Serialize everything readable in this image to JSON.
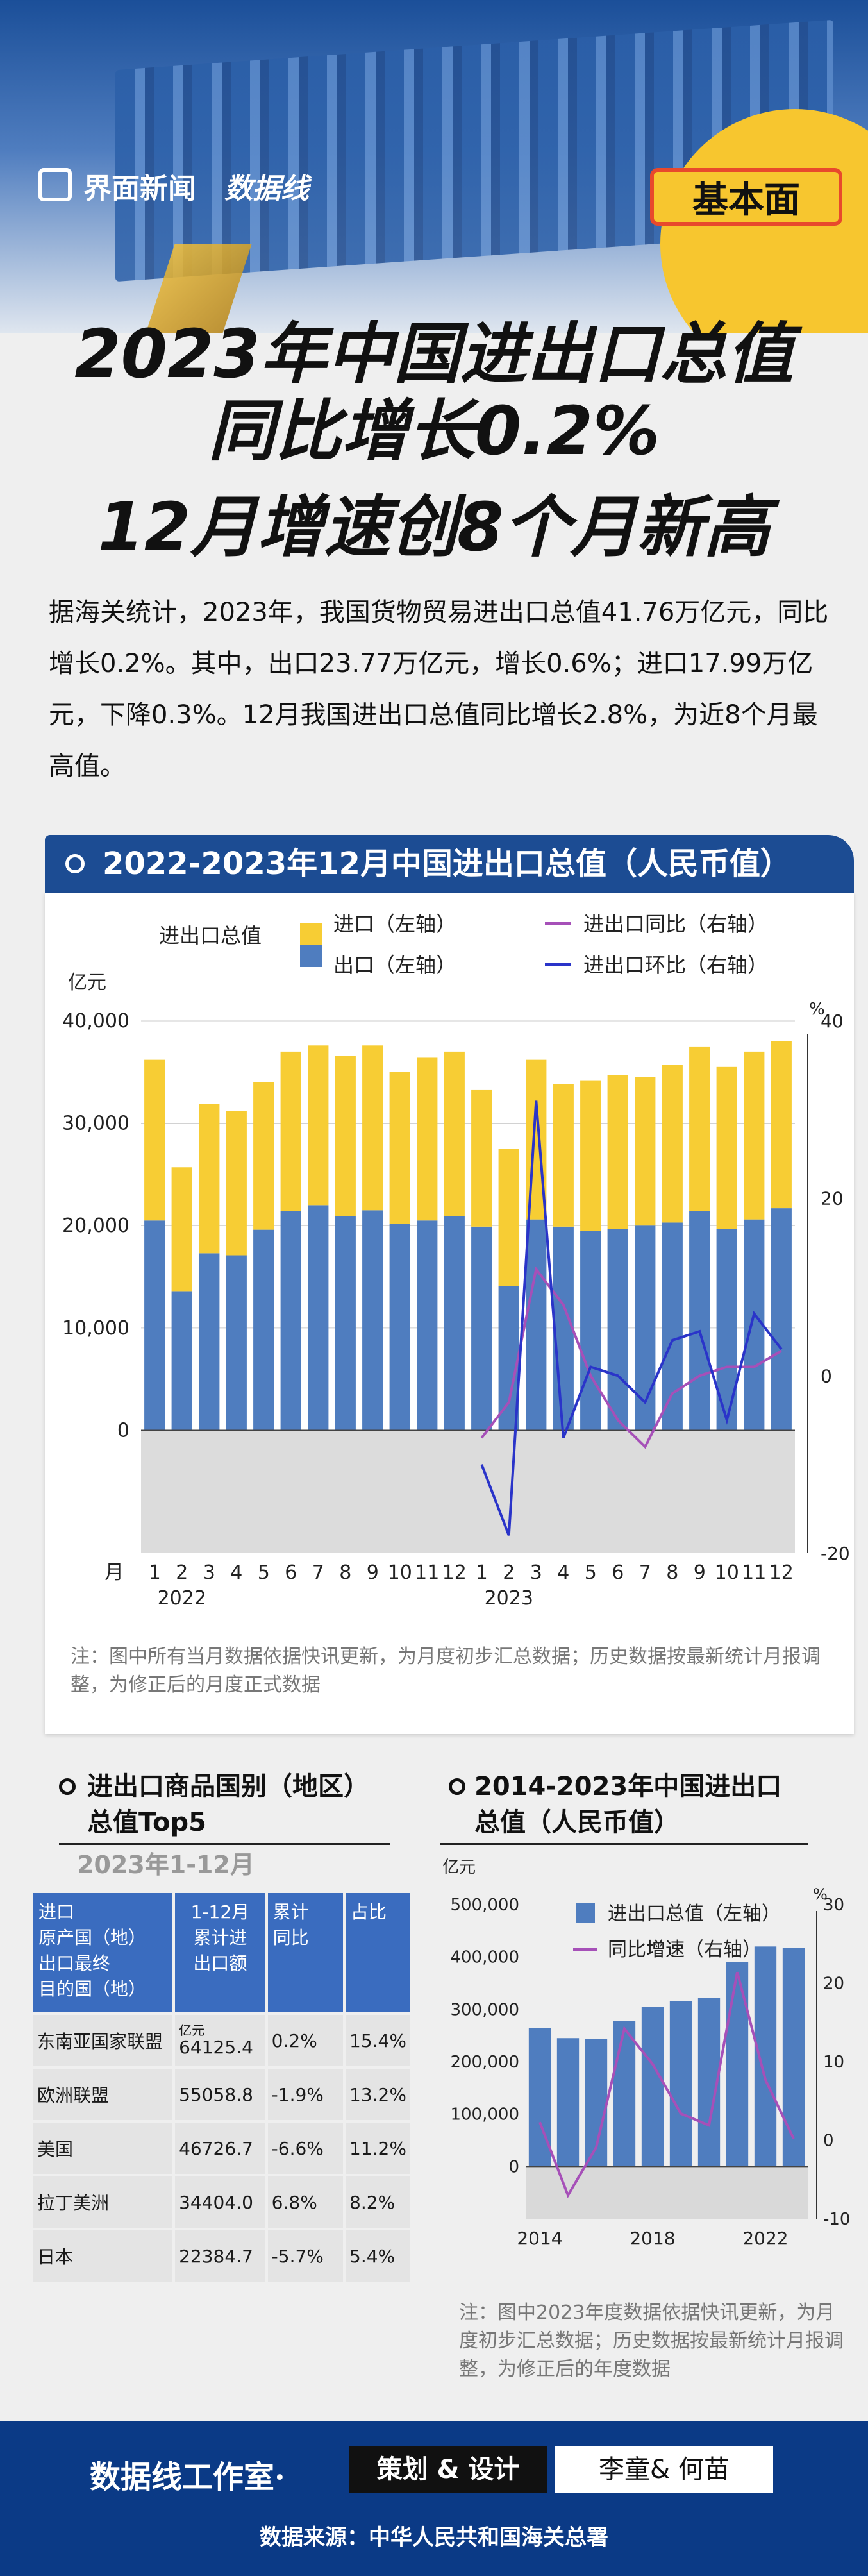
{
  "header": {
    "logo_jm": "界面新闻",
    "logo_sjx": "数据线",
    "badge": "基本面"
  },
  "title": {
    "line1": "2023年中国进出口总值",
    "line2": "同比增长0.2%",
    "line3": "12月增速创8个月新高"
  },
  "intro": "据海关统计，2023年，我国货物贸易进出口总值41.76万亿元，同比增长0.2%。其中，出口23.77万亿元，增长0.6%；进口17.99万亿元，下降0.3%。12月我国进出口总值同比增长2.8%，为近8个月最高值。",
  "section1": {
    "title": "2022-2023年12月中国进出口总值（人民币值）",
    "note": "注：图中所有当月数据依据快讯更新，为月度初步汇总数据；历史数据按最新统计月报调整，为修正后的月度正式数据"
  },
  "colors": {
    "export": "#4f7dbf",
    "import": "#f7cd34",
    "yoy": "#a650b8",
    "mom": "#2a34c9",
    "header_blue": "#1c4c93"
  },
  "chart_data": [
    {
      "type": "bar",
      "title": "2022-2023年12月中国进出口总值（人民币值）",
      "legend_title": "进出口总值",
      "left_unit": "亿元",
      "right_unit": "%",
      "x_prefix": "月",
      "categories": [
        "1",
        "2",
        "3",
        "4",
        "5",
        "6",
        "7",
        "8",
        "9",
        "10",
        "11",
        "12",
        "1",
        "2",
        "3",
        "4",
        "5",
        "6",
        "7",
        "8",
        "9",
        "10",
        "11",
        "12"
      ],
      "year_labels": [
        "2022",
        "2023"
      ],
      "series": [
        {
          "name": "出口（左轴）",
          "values": [
            20500,
            13600,
            17300,
            17100,
            19600,
            21400,
            22000,
            20900,
            21500,
            20200,
            20500,
            20900,
            19900,
            14100,
            20600,
            19900,
            19500,
            19700,
            20000,
            20300,
            21400,
            19700,
            20600,
            21700
          ]
        },
        {
          "name": "进口（左轴）",
          "values": [
            15700,
            12100,
            14600,
            14100,
            14400,
            15600,
            15600,
            15700,
            16100,
            14800,
            15900,
            16100,
            13400,
            13400,
            15600,
            13900,
            14700,
            15000,
            14500,
            15400,
            16100,
            15800,
            16400,
            16300
          ]
        },
        {
          "name": "进出口同比（右轴）",
          "values": [
            null,
            null,
            null,
            null,
            null,
            null,
            null,
            null,
            null,
            null,
            null,
            null,
            -7,
            -3,
            12,
            8,
            0,
            -5,
            -8,
            -2,
            0,
            1,
            1,
            2.8
          ]
        },
        {
          "name": "进出口环比（右轴）",
          "values": [
            null,
            null,
            null,
            null,
            null,
            null,
            null,
            null,
            null,
            null,
            null,
            null,
            -10,
            -18,
            31,
            -7,
            1,
            0,
            -3,
            4,
            5,
            -5,
            7,
            3
          ]
        }
      ],
      "ylim_left": [
        -12000,
        40000
      ],
      "yticks_left": [
        "40,000",
        "30,000",
        "20,000",
        "10,000",
        "0"
      ],
      "ylim_right": [
        -20,
        40
      ],
      "yticks_right": [
        "40",
        "20",
        "0",
        "-20"
      ]
    },
    {
      "type": "bar",
      "title": "2014-2023年中国进出口总值（人民币值）",
      "left_unit": "亿元",
      "right_unit": "%",
      "categories": [
        "2014",
        "2015",
        "2016",
        "2017",
        "2018",
        "2019",
        "2020",
        "2021",
        "2022",
        "2023"
      ],
      "x_tick_labels": [
        "2014",
        "",
        "",
        "",
        "2018",
        "",
        "",
        "",
        "2022",
        ""
      ],
      "series": [
        {
          "name": "进出口总值（左轴）",
          "values": [
            264000,
            245000,
            243000,
            278000,
            305000,
            316000,
            322000,
            391000,
            420000,
            417600
          ]
        },
        {
          "name": "同比增速（右轴）",
          "values": [
            2.3,
            -7,
            -0.9,
            14.2,
            9.7,
            3.4,
            1.9,
            21.4,
            7.7,
            0.2
          ]
        }
      ],
      "ylim_left": [
        -100000,
        500000
      ],
      "yticks_left": [
        "500,000",
        "400,000",
        "300,000",
        "200,000",
        "100,000",
        "0"
      ],
      "ylim_right": [
        -10,
        30
      ],
      "yticks_right": [
        "30",
        "20",
        "10",
        "0",
        "-10"
      ]
    }
  ],
  "section2": {
    "title_line1": "进出口商品国别（地区）",
    "title_line2": "总值Top5",
    "period": "2023年1-12月",
    "headers": [
      "进口\n原产国（地）\n出口最终\n目的国（地）",
      "1-12月\n累计进\n出口额",
      "累计\n同比",
      "占比"
    ],
    "unit": "亿元",
    "rows": [
      {
        "name": "东南亚国家联盟",
        "value": "64125.4",
        "yoy": "0.2%",
        "share": "15.4%"
      },
      {
        "name": "欧洲联盟",
        "value": "55058.8",
        "yoy": "-1.9%",
        "share": "13.2%"
      },
      {
        "name": "美国",
        "value": "46726.7",
        "yoy": "-6.6%",
        "share": "11.2%"
      },
      {
        "name": "拉丁美洲",
        "value": "34404.0",
        "yoy": "6.8%",
        "share": "8.2%"
      },
      {
        "name": "日本",
        "value": "22384.7",
        "yoy": "-5.7%",
        "share": "5.4%"
      }
    ]
  },
  "section3": {
    "title_line1": "2014-2023年中国进出口",
    "title_line2": "总值（人民币值）",
    "note": "注：图中2023年度数据依据快讯更新，为月度初步汇总数据；历史数据按最新统计月报调整，为修正后的年度数据"
  },
  "footer": {
    "studio": "数据线工作室·",
    "role": "策划 & 设计",
    "names": "李童& 何苗",
    "source": "数据来源：中华人民共和国海关总署"
  }
}
